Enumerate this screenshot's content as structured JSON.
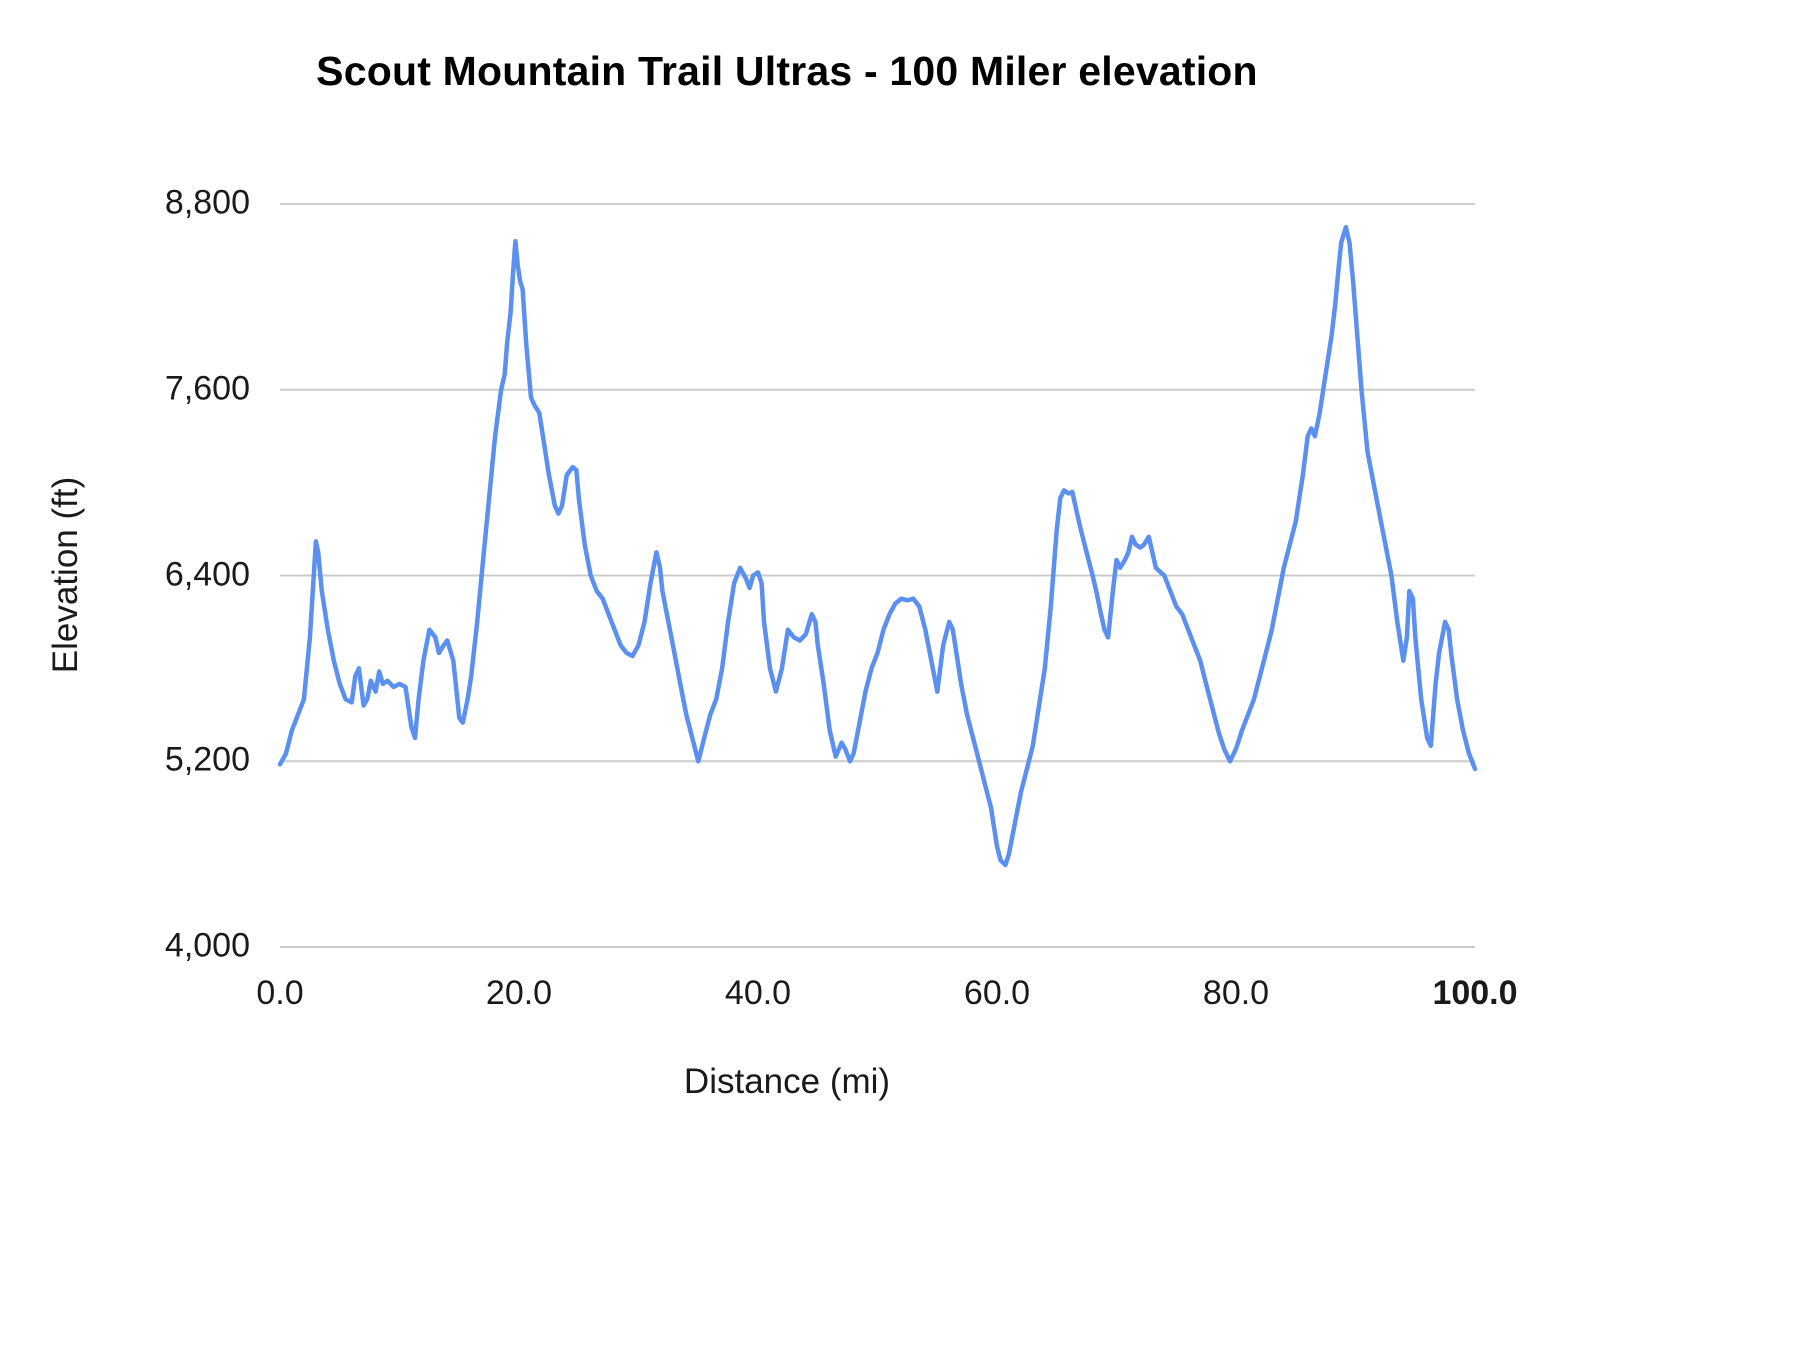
{
  "chart_data": {
    "type": "line",
    "title": "Scout Mountain Trail Ultras - 100 Miler elevation",
    "xlabel": "Distance (mi)",
    "ylabel": "Elevation (ft)",
    "xlim": [
      0,
      100
    ],
    "ylim": [
      4000,
      8800
    ],
    "grid": "horizontal-only",
    "legend": "none",
    "line_color": "#5b8ff0",
    "grid_color": "#cccccc",
    "yticks_desc": [
      8800,
      7600,
      6400,
      5200,
      4000
    ],
    "ytick_labels": [
      "8,800",
      "7,600",
      "6,400",
      "5,200",
      "4,000"
    ],
    "xticks": [
      0,
      20,
      40,
      60,
      80,
      100
    ],
    "xtick_labels": [
      "0.0",
      "20.0",
      "40.0",
      "60.0",
      "80.0",
      "100.0"
    ],
    "series": [
      {
        "name": "Elevation (ft)",
        "points": [
          [
            0,
            5180
          ],
          [
            0.5,
            5250
          ],
          [
            1,
            5400
          ],
          [
            1.5,
            5500
          ],
          [
            2,
            5600
          ],
          [
            2.5,
            6000
          ],
          [
            3,
            6620
          ],
          [
            3.2,
            6550
          ],
          [
            3.5,
            6300
          ],
          [
            4,
            6050
          ],
          [
            4.5,
            5850
          ],
          [
            5,
            5700
          ],
          [
            5.5,
            5600
          ],
          [
            6,
            5580
          ],
          [
            6.3,
            5750
          ],
          [
            6.6,
            5800
          ],
          [
            7,
            5560
          ],
          [
            7.3,
            5600
          ],
          [
            7.6,
            5720
          ],
          [
            8,
            5650
          ],
          [
            8.3,
            5780
          ],
          [
            8.6,
            5700
          ],
          [
            9,
            5720
          ],
          [
            9.5,
            5680
          ],
          [
            10,
            5700
          ],
          [
            10.5,
            5680
          ],
          [
            11,
            5420
          ],
          [
            11.3,
            5350
          ],
          [
            11.6,
            5600
          ],
          [
            12,
            5850
          ],
          [
            12.5,
            6050
          ],
          [
            13,
            6000
          ],
          [
            13.3,
            5900
          ],
          [
            13.7,
            5950
          ],
          [
            14,
            5980
          ],
          [
            14.5,
            5850
          ],
          [
            15,
            5480
          ],
          [
            15.3,
            5450
          ],
          [
            15.7,
            5600
          ],
          [
            16,
            5750
          ],
          [
            16.5,
            6100
          ],
          [
            17,
            6500
          ],
          [
            17.5,
            6900
          ],
          [
            18,
            7300
          ],
          [
            18.5,
            7600
          ],
          [
            18.8,
            7700
          ],
          [
            19,
            7900
          ],
          [
            19.3,
            8100
          ],
          [
            19.5,
            8350
          ],
          [
            19.7,
            8560
          ],
          [
            19.9,
            8400
          ],
          [
            20.1,
            8300
          ],
          [
            20.3,
            8250
          ],
          [
            20.6,
            7900
          ],
          [
            21,
            7550
          ],
          [
            21.3,
            7500
          ],
          [
            21.7,
            7450
          ],
          [
            22,
            7300
          ],
          [
            22.5,
            7050
          ],
          [
            23,
            6850
          ],
          [
            23.3,
            6800
          ],
          [
            23.6,
            6850
          ],
          [
            24,
            7050
          ],
          [
            24.5,
            7100
          ],
          [
            24.8,
            7080
          ],
          [
            25,
            6900
          ],
          [
            25.5,
            6600
          ],
          [
            26,
            6400
          ],
          [
            26.5,
            6300
          ],
          [
            27,
            6250
          ],
          [
            27.5,
            6150
          ],
          [
            28,
            6050
          ],
          [
            28.5,
            5950
          ],
          [
            29,
            5900
          ],
          [
            29.5,
            5880
          ],
          [
            30,
            5950
          ],
          [
            30.5,
            6100
          ],
          [
            31,
            6350
          ],
          [
            31.5,
            6550
          ],
          [
            31.8,
            6450
          ],
          [
            32,
            6300
          ],
          [
            32.5,
            6100
          ],
          [
            33,
            5900
          ],
          [
            33.5,
            5700
          ],
          [
            34,
            5500
          ],
          [
            34.5,
            5350
          ],
          [
            35,
            5200
          ],
          [
            35.5,
            5350
          ],
          [
            36,
            5500
          ],
          [
            36.5,
            5600
          ],
          [
            37,
            5800
          ],
          [
            37.5,
            6100
          ],
          [
            38,
            6350
          ],
          [
            38.5,
            6450
          ],
          [
            39,
            6380
          ],
          [
            39.3,
            6320
          ],
          [
            39.6,
            6400
          ],
          [
            40,
            6420
          ],
          [
            40.3,
            6350
          ],
          [
            40.5,
            6100
          ],
          [
            41,
            5800
          ],
          [
            41.5,
            5650
          ],
          [
            42,
            5800
          ],
          [
            42.5,
            6050
          ],
          [
            43,
            6000
          ],
          [
            43.5,
            5980
          ],
          [
            44,
            6020
          ],
          [
            44.5,
            6150
          ],
          [
            44.8,
            6100
          ],
          [
            45,
            5950
          ],
          [
            45.5,
            5700
          ],
          [
            46,
            5400
          ],
          [
            46.5,
            5230
          ],
          [
            47,
            5320
          ],
          [
            47.3,
            5280
          ],
          [
            47.7,
            5200
          ],
          [
            48,
            5250
          ],
          [
            48.5,
            5450
          ],
          [
            49,
            5650
          ],
          [
            49.5,
            5800
          ],
          [
            50,
            5900
          ],
          [
            50.5,
            6050
          ],
          [
            51,
            6150
          ],
          [
            51.5,
            6220
          ],
          [
            52,
            6250
          ],
          [
            52.5,
            6240
          ],
          [
            53,
            6250
          ],
          [
            53.5,
            6200
          ],
          [
            54,
            6050
          ],
          [
            54.5,
            5850
          ],
          [
            55,
            5650
          ],
          [
            55.5,
            5950
          ],
          [
            56,
            6100
          ],
          [
            56.3,
            6050
          ],
          [
            56.6,
            5900
          ],
          [
            57,
            5700
          ],
          [
            57.5,
            5500
          ],
          [
            58,
            5350
          ],
          [
            58.5,
            5200
          ],
          [
            59,
            5050
          ],
          [
            59.5,
            4900
          ],
          [
            60,
            4650
          ],
          [
            60.3,
            4560
          ],
          [
            60.7,
            4530
          ],
          [
            61,
            4600
          ],
          [
            61.5,
            4800
          ],
          [
            62,
            5000
          ],
          [
            62.5,
            5150
          ],
          [
            63,
            5300
          ],
          [
            63.5,
            5550
          ],
          [
            64,
            5800
          ],
          [
            64.5,
            6200
          ],
          [
            65,
            6700
          ],
          [
            65.3,
            6900
          ],
          [
            65.6,
            6950
          ],
          [
            66,
            6930
          ],
          [
            66.3,
            6940
          ],
          [
            66.7,
            6800
          ],
          [
            67,
            6700
          ],
          [
            67.5,
            6550
          ],
          [
            68,
            6400
          ],
          [
            68.3,
            6300
          ],
          [
            68.7,
            6150
          ],
          [
            69,
            6050
          ],
          [
            69.3,
            6000
          ],
          [
            69.7,
            6300
          ],
          [
            70,
            6500
          ],
          [
            70.3,
            6450
          ],
          [
            70.7,
            6500
          ],
          [
            71,
            6550
          ],
          [
            71.3,
            6650
          ],
          [
            71.6,
            6600
          ],
          [
            72,
            6580
          ],
          [
            72.3,
            6600
          ],
          [
            72.7,
            6650
          ],
          [
            73,
            6550
          ],
          [
            73.3,
            6450
          ],
          [
            73.7,
            6420
          ],
          [
            74,
            6400
          ],
          [
            74.5,
            6300
          ],
          [
            75,
            6200
          ],
          [
            75.5,
            6150
          ],
          [
            76,
            6050
          ],
          [
            76.5,
            5950
          ],
          [
            77,
            5850
          ],
          [
            77.5,
            5700
          ],
          [
            78,
            5550
          ],
          [
            78.5,
            5400
          ],
          [
            79,
            5280
          ],
          [
            79.5,
            5200
          ],
          [
            80,
            5280
          ],
          [
            80.5,
            5400
          ],
          [
            81,
            5500
          ],
          [
            81.5,
            5600
          ],
          [
            82,
            5750
          ],
          [
            82.5,
            5900
          ],
          [
            83,
            6050
          ],
          [
            83.5,
            6250
          ],
          [
            84,
            6450
          ],
          [
            84.5,
            6600
          ],
          [
            85,
            6750
          ],
          [
            85.3,
            6900
          ],
          [
            85.6,
            7050
          ],
          [
            86,
            7300
          ],
          [
            86.3,
            7350
          ],
          [
            86.6,
            7300
          ],
          [
            87,
            7450
          ],
          [
            87.5,
            7700
          ],
          [
            88,
            7950
          ],
          [
            88.3,
            8150
          ],
          [
            88.6,
            8400
          ],
          [
            88.8,
            8550
          ],
          [
            89,
            8600
          ],
          [
            89.2,
            8650
          ],
          [
            89.5,
            8550
          ],
          [
            89.8,
            8300
          ],
          [
            90,
            8100
          ],
          [
            90.5,
            7600
          ],
          [
            91,
            7200
          ],
          [
            91.5,
            7000
          ],
          [
            92,
            6800
          ],
          [
            92.5,
            6600
          ],
          [
            93,
            6400
          ],
          [
            93.5,
            6100
          ],
          [
            94,
            5850
          ],
          [
            94.3,
            6000
          ],
          [
            94.5,
            6300
          ],
          [
            94.8,
            6250
          ],
          [
            95,
            6000
          ],
          [
            95.5,
            5600
          ],
          [
            96,
            5350
          ],
          [
            96.3,
            5300
          ],
          [
            96.7,
            5700
          ],
          [
            97,
            5900
          ],
          [
            97.5,
            6100
          ],
          [
            97.8,
            6050
          ],
          [
            98,
            5900
          ],
          [
            98.5,
            5600
          ],
          [
            99,
            5400
          ],
          [
            99.5,
            5250
          ],
          [
            100,
            5150
          ]
        ]
      }
    ]
  }
}
